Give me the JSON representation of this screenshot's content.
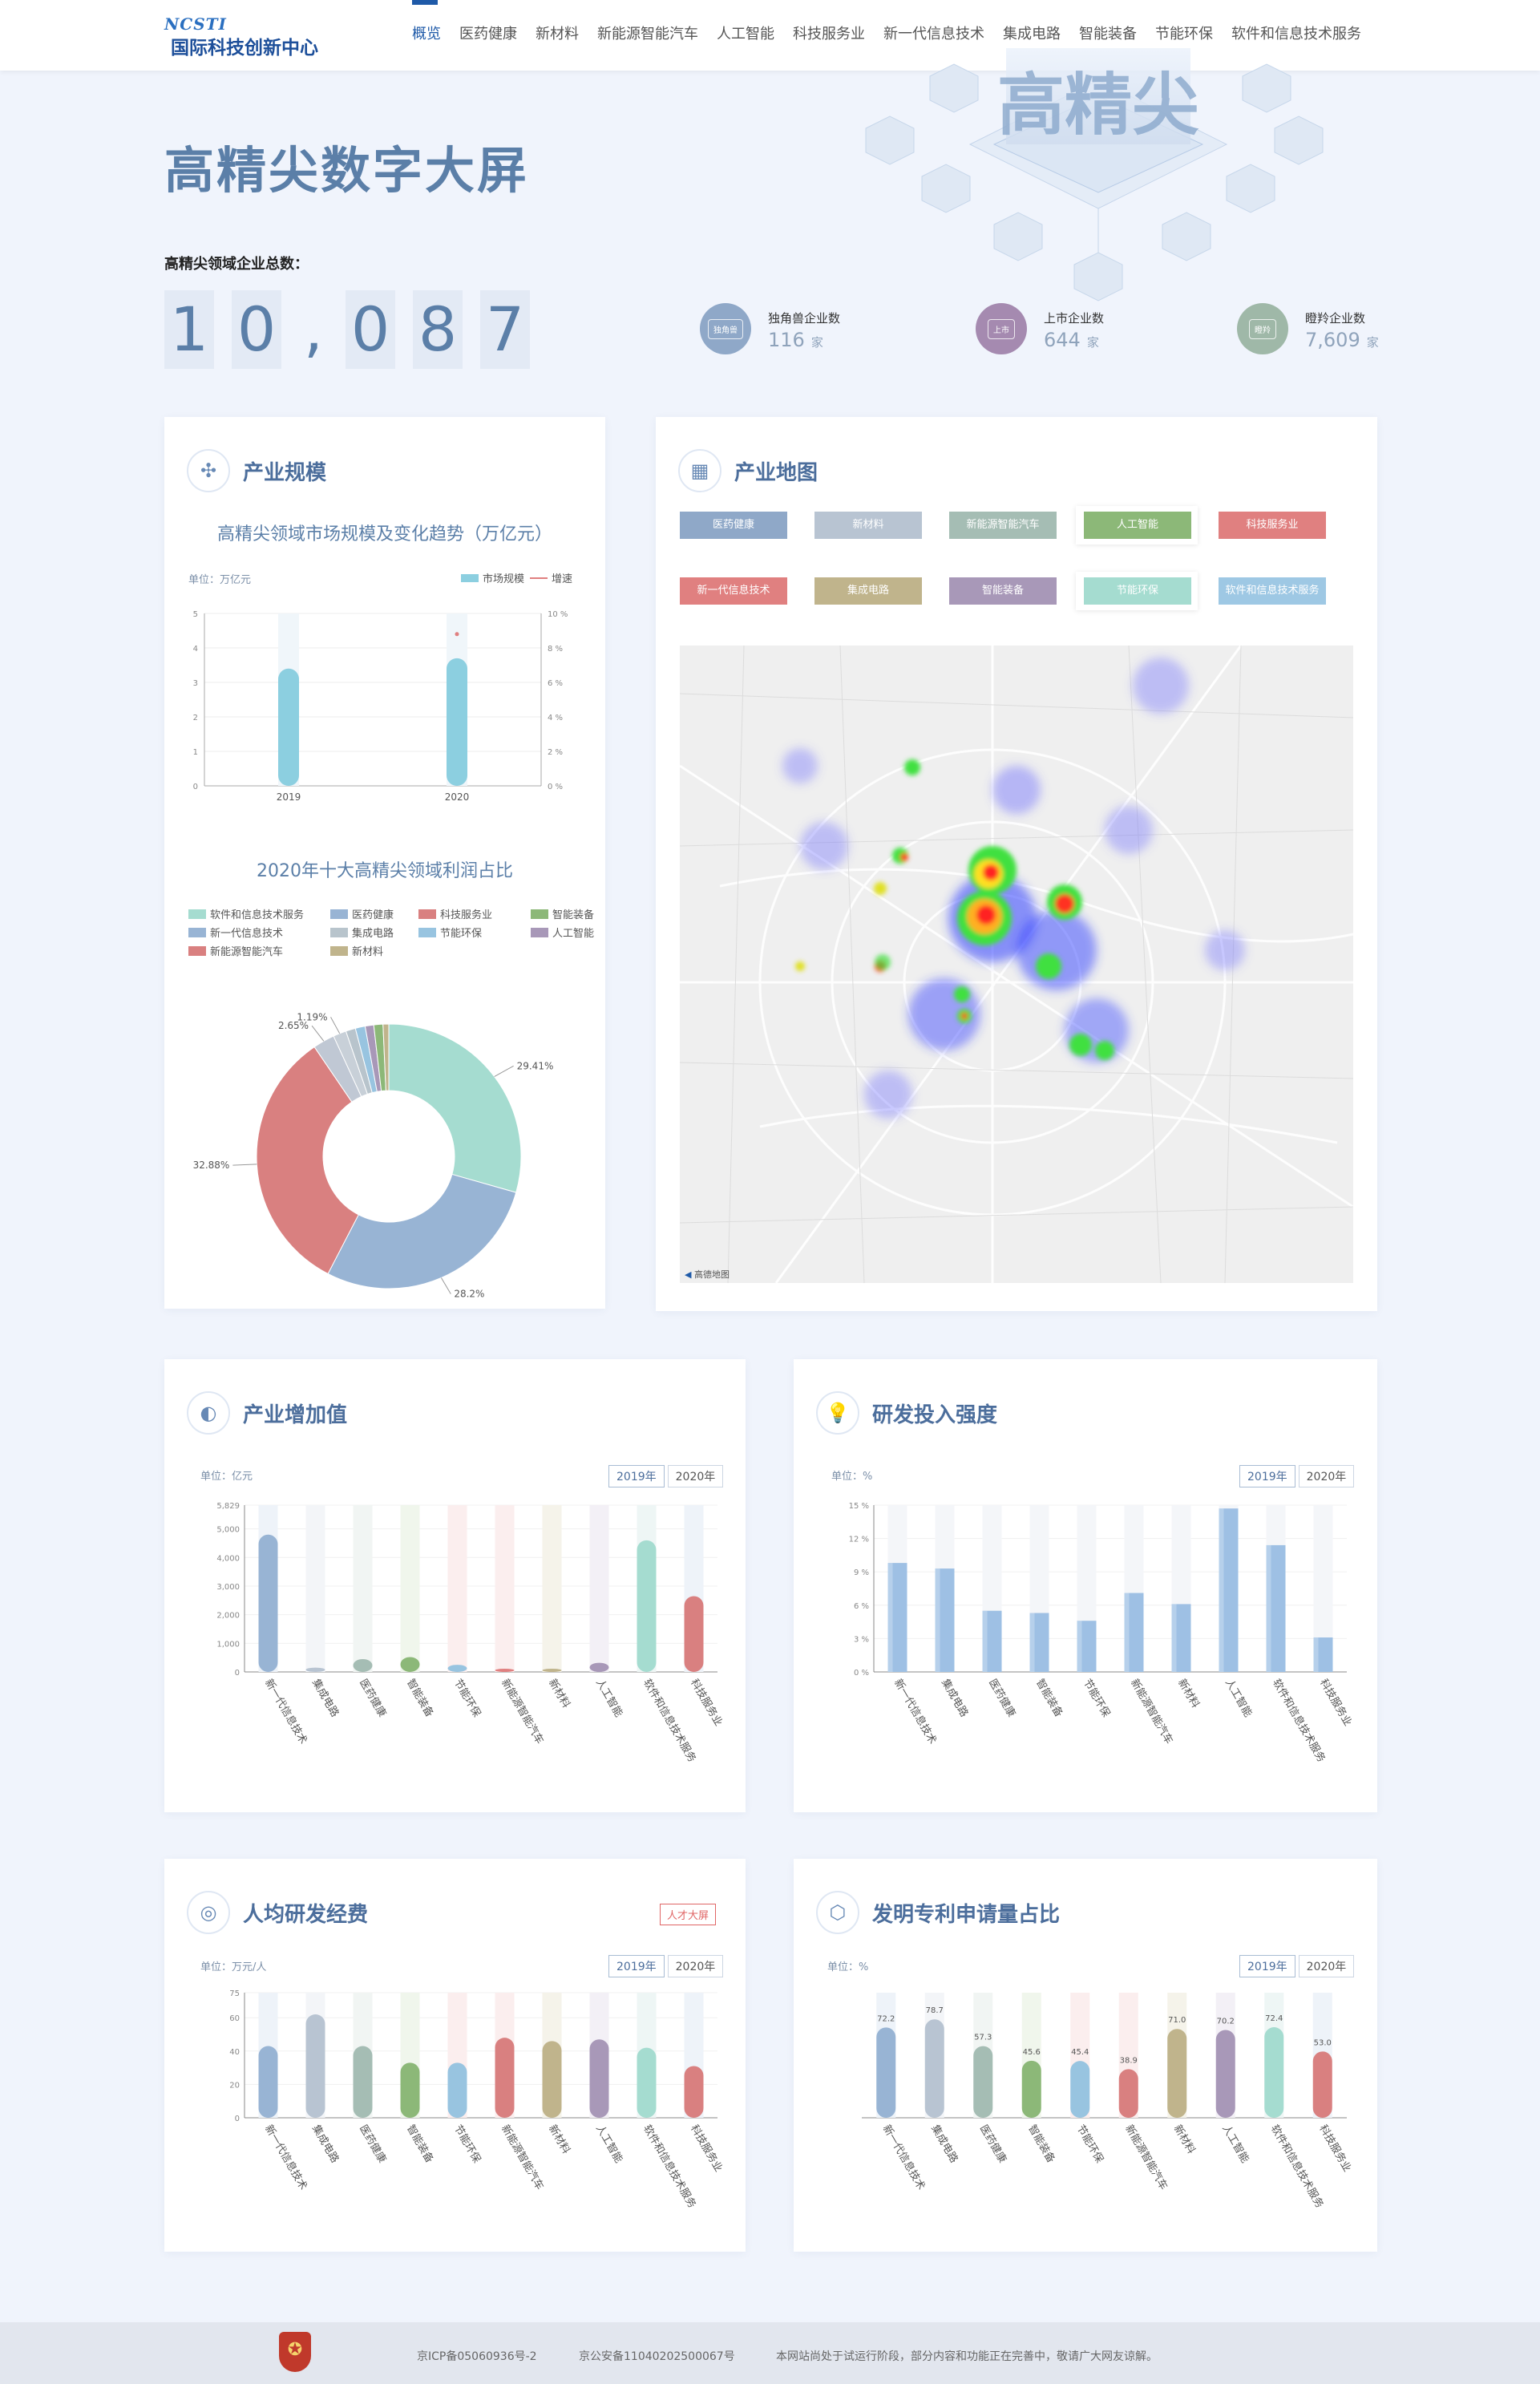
{
  "nav": {
    "logo_mark": "NCSTI",
    "logo_name": "国际科技创新中心",
    "items": [
      "概览",
      "医药健康",
      "新材料",
      "新能源智能汽车",
      "人工智能",
      "科技服务业",
      "新一代信息技术",
      "集成电路",
      "智能装备",
      "节能环保",
      "软件和信息技术服务"
    ],
    "active_index": 0
  },
  "hero": {
    "title": "高精尖数字大屏",
    "total_label": "高精尖领域企业总数：",
    "total_digits": [
      "1",
      "0",
      ",",
      "0",
      "8",
      "7"
    ],
    "illustration_text": "高精尖"
  },
  "stats": [
    {
      "icon_text": "独角兽",
      "label": "独角兽企业数",
      "value": "116",
      "unit": "家",
      "color": "#8fa8c8"
    },
    {
      "icon_text": "上市",
      "label": "上市企业数",
      "value": "644",
      "unit": "家",
      "color": "#a58ab0"
    },
    {
      "icon_text": "瞪羚",
      "label": "瞪羚企业数",
      "value": "7,609",
      "unit": "家",
      "color": "#9fb8a8"
    }
  ],
  "scale": {
    "title": "产业规模",
    "icon": "industry-scale-icon",
    "chart_title": "高精尖领域市场规模及变化趋势（万亿元）",
    "unit": "单位：万亿元",
    "legend": [
      "市场规模",
      "增速"
    ],
    "pie_title": "2020年十大高精尖领域利润占比"
  },
  "map": {
    "title": "产业地图",
    "tags": [
      {
        "label": "医药健康",
        "color": "#8fa8c8"
      },
      {
        "label": "新材料",
        "color": "#b8c4d2"
      },
      {
        "label": "新能源智能汽车",
        "color": "#a5bdb4"
      },
      {
        "label": "人工智能",
        "color": "#8cb878"
      },
      {
        "label": "科技服务业",
        "color": "#e08080"
      },
      {
        "label": "新一代信息技术",
        "color": "#e08080"
      },
      {
        "label": "集成电路",
        "color": "#c0b48c"
      },
      {
        "label": "智能装备",
        "color": "#a898b8"
      },
      {
        "label": "节能环保",
        "color": "#a5dcd0"
      },
      {
        "label": "软件和信息技术服务",
        "color": "#9ec8e4"
      }
    ],
    "attribution": "高德地图"
  },
  "added_value": {
    "title": "产业增加值",
    "unit": "单位：亿元",
    "years": [
      "2019年",
      "2020年"
    ]
  },
  "rd": {
    "title": "研发投入强度",
    "unit": "单位：%",
    "years": [
      "2019年",
      "2020年"
    ]
  },
  "per_capita": {
    "title": "人均研发经费",
    "unit": "单位：万元/人",
    "years": [
      "2019年",
      "2020年"
    ],
    "badge": "人才大屏"
  },
  "patent": {
    "title": "发明专利申请量占比",
    "unit": "单位：%",
    "years": [
      "2019年",
      "2020年"
    ]
  },
  "footer": {
    "icp": "京ICP备05060936号-2",
    "police": "京公安备11040202500067号",
    "notice": "本网站尚处于试运行阶段，部分内容和功能正在完善中，敬请广大网友谅解。"
  },
  "chart_data": [
    {
      "id": "market-scale",
      "type": "bar",
      "title": "高精尖领域市场规模及变化趋势（万亿元）",
      "categories": [
        "2019",
        "2020"
      ],
      "series": [
        {
          "name": "市场规模",
          "values": [
            3.4,
            3.7
          ],
          "color": "#8ccfe0"
        },
        {
          "name": "增速",
          "values": [
            null,
            8.8
          ],
          "color": "#e08080"
        }
      ],
      "y_ticks": [
        0,
        1,
        2,
        3,
        4,
        5
      ],
      "y2_ticks": [
        "0 %",
        "2 %",
        "4 %",
        "6 %",
        "8 %",
        "10 %"
      ],
      "ylim": [
        0,
        5
      ]
    },
    {
      "id": "profit-pie",
      "type": "pie",
      "title": "2020年十大高精尖领域利润占比",
      "categories": [
        "软件和信息技术服务",
        "医药健康",
        "科技服务业",
        "智能装备",
        "新一代信息技术",
        "集成电路",
        "节能环保",
        "人工智能",
        "新能源智能汽车",
        "新材料"
      ],
      "values": [
        29.41,
        28.2,
        32.88,
        2.65,
        1.6,
        1.19,
        1.2,
        1.05,
        1.12,
        0.7
      ],
      "colors": [
        "#a5dcd0",
        "#98b4d4",
        "#d98080",
        "#c0c8d4",
        "#c8d0d8",
        "#b8c4cc",
        "#98c4e0",
        "#a898b8",
        "#8cb878",
        "#c0b48c"
      ],
      "legend_order": [
        "软件和信息技术服务",
        "医药健康",
        "科技服务业",
        "智能装备",
        "新一代信息技术",
        "集成电路",
        "节能环保",
        "人工智能",
        "新能源智能汽车",
        "新材料"
      ],
      "legend_colors": [
        "#a5dcd0",
        "#98b4d4",
        "#d98080",
        "#8cb878",
        "#98b4d4",
        "#b8c4cc",
        "#98c4e0",
        "#a898b8",
        "#d98080",
        "#c0b48c"
      ],
      "labels": [
        "29.41%",
        "28.2%",
        "32.88%",
        "2.65%",
        "1.19%"
      ]
    },
    {
      "id": "added-value",
      "type": "bar",
      "categories": [
        "新一代信息技术",
        "集成电路",
        "医药健康",
        "智能装备",
        "节能环保",
        "新能源智能汽车",
        "新材料",
        "人工智能",
        "软件和信息技术服务",
        "科技服务业"
      ],
      "values": [
        4800,
        150,
        450,
        520,
        250,
        40,
        40,
        320,
        4600,
        2650
      ],
      "colors": [
        "#98b4d4",
        "#b8c4d2",
        "#a5bdb4",
        "#8cb878",
        "#98c4e0",
        "#e08080",
        "#c0b48c",
        "#a898b8",
        "#a5dcd0",
        "#d98080"
      ],
      "bg_colors": [
        "#eef3f9",
        "#f3f5f8",
        "#f1f5f3",
        "#f0f6ec",
        "#fbeeee",
        "#fbeeee",
        "#f5f3ea",
        "#f3f0f6",
        "#eef6f5",
        "#eef3f9"
      ],
      "y_ticks": [
        "0",
        "1,000",
        "2,000",
        "3,000",
        "4,000",
        "5,000",
        "5,829"
      ],
      "ylim": [
        0,
        5829
      ]
    },
    {
      "id": "rd-intensity",
      "type": "bar",
      "categories": [
        "新一代信息技术",
        "集成电路",
        "医药健康",
        "智能装备",
        "节能环保",
        "新能源智能汽车",
        "新材料",
        "人工智能",
        "软件和信息技术服务",
        "科技服务业"
      ],
      "values": [
        9.8,
        9.3,
        5.5,
        5.3,
        4.6,
        7.1,
        6.1,
        14.7,
        11.4,
        3.1
      ],
      "color": "#9ec0e4",
      "y_ticks": [
        "0 %",
        "3 %",
        "6 %",
        "9 %",
        "12 %",
        "15 %"
      ],
      "ylim": [
        0,
        15
      ]
    },
    {
      "id": "per-capita-rd",
      "type": "bar",
      "categories": [
        "新一代信息技术",
        "集成电路",
        "医药健康",
        "智能装备",
        "节能环保",
        "新能源智能汽车",
        "新材料",
        "人工智能",
        "软件和信息技术服务",
        "科技服务业"
      ],
      "values": [
        43,
        62,
        43,
        33,
        33,
        48,
        46,
        47,
        42,
        31
      ],
      "colors": [
        "#98b4d4",
        "#b8c4d2",
        "#a5bdb4",
        "#8cb878",
        "#98c4e0",
        "#d98080",
        "#c0b48c",
        "#a898b8",
        "#a5dcd0",
        "#d98080"
      ],
      "bg_colors": [
        "#eef3f9",
        "#f3f5f8",
        "#f1f5f3",
        "#f0f6ec",
        "#fbeeee",
        "#fbeeee",
        "#f5f3ea",
        "#f3f0f6",
        "#eef6f5",
        "#eef3f9"
      ],
      "y_ticks": [
        "0",
        "20",
        "40",
        "60",
        "75"
      ],
      "ylim": [
        0,
        75
      ]
    },
    {
      "id": "patent-share",
      "type": "bar",
      "categories": [
        "新一代信息技术",
        "集成电路",
        "医药健康",
        "智能装备",
        "节能环保",
        "新能源智能汽车",
        "新材料",
        "人工智能",
        "软件和信息技术服务",
        "科技服务业"
      ],
      "values": [
        72.2,
        78.7,
        57.3,
        45.6,
        45.4,
        38.9,
        71.0,
        70.2,
        72.4,
        53.0
      ],
      "labels": [
        "72.2",
        "78.7",
        "57.3",
        "45.6",
        "45.4",
        "38.9",
        "71.0",
        "70.2",
        "72.4",
        "53.0"
      ],
      "colors": [
        "#98b4d4",
        "#b8c4d2",
        "#a5bdb4",
        "#8cb878",
        "#98c4e0",
        "#d98080",
        "#c0b48c",
        "#a898b8",
        "#a5dcd0",
        "#d98080"
      ],
      "bg_colors": [
        "#eef3f9",
        "#f3f5f8",
        "#f1f5f3",
        "#f0f6ec",
        "#fbeeee",
        "#fbeeee",
        "#f5f3ea",
        "#f3f0f6",
        "#eef6f5",
        "#eef3f9"
      ],
      "ylim": [
        0,
        100
      ]
    }
  ]
}
